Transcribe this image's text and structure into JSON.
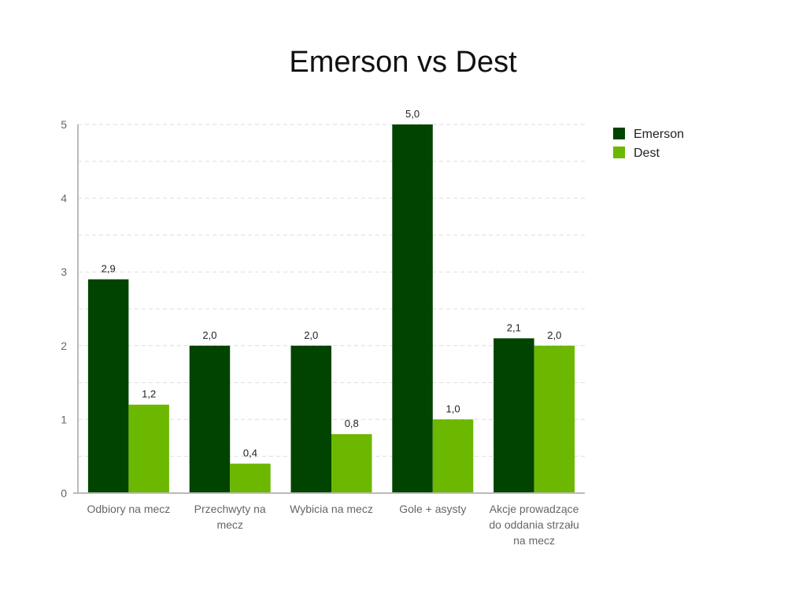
{
  "chart_data": {
    "type": "bar",
    "title": "Emerson vs Dest",
    "categories": [
      [
        "Odbiory na mecz"
      ],
      [
        "Przechwyty na",
        "mecz"
      ],
      [
        "Wybicia na mecz"
      ],
      [
        "Gole + asysty"
      ],
      [
        "Akcje prowadzące",
        "do oddania strzału",
        "na mecz"
      ]
    ],
    "series": [
      {
        "name": "Emerson",
        "values": [
          2.9,
          2.0,
          2.0,
          5.0,
          2.1
        ],
        "labels": [
          "2,9",
          "2,0",
          "2,0",
          "5,0",
          "2,1"
        ],
        "color": "#004400"
      },
      {
        "name": "Dest",
        "values": [
          1.2,
          0.4,
          0.8,
          1.0,
          2.0
        ],
        "labels": [
          "1,2",
          "0,4",
          "0,8",
          "1,0",
          "2,0"
        ],
        "color": "#6cb800"
      }
    ],
    "yticks": [
      "0",
      "1",
      "2",
      "3",
      "4",
      "5"
    ],
    "ylim": [
      0,
      5
    ],
    "grid": true,
    "legend_position": "right"
  }
}
